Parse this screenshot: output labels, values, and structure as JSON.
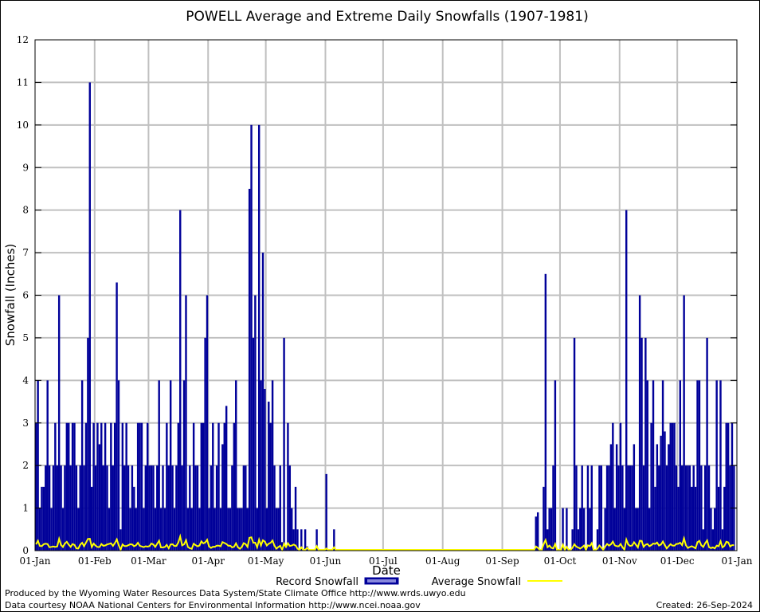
{
  "chart_data": {
    "type": "bar",
    "title": "POWELL Average and Extreme Daily Snowfalls (1907-1981)",
    "xlabel": "Date",
    "ylabel": "Snowfall (Inches)",
    "ylim": [
      0,
      12
    ],
    "yticks": [
      "0",
      "1",
      "2",
      "3",
      "4",
      "5",
      "6",
      "7",
      "8",
      "9",
      "10",
      "11",
      "12"
    ],
    "xlim_days": [
      0,
      365
    ],
    "xticks": [
      {
        "label": "01-Jan",
        "day": 0
      },
      {
        "label": "01-Feb",
        "day": 31
      },
      {
        "label": "01-Mar",
        "day": 59
      },
      {
        "label": "01-Apr",
        "day": 90
      },
      {
        "label": "01-May",
        "day": 120
      },
      {
        "label": "01-Jun",
        "day": 151
      },
      {
        "label": "01-Jul",
        "day": 181
      },
      {
        "label": "01-Aug",
        "day": 212
      },
      {
        "label": "01-Sep",
        "day": 243
      },
      {
        "label": "01-Oct",
        "day": 273
      },
      {
        "label": "01-Nov",
        "day": 304
      },
      {
        "label": "01-Dec",
        "day": 334
      },
      {
        "label": "01-Jan",
        "day": 365
      }
    ],
    "grid": true,
    "legend_position": "bottom-center",
    "series": [
      {
        "name": "Record Snowfall",
        "color": "#000099",
        "kind": "bar",
        "values": [
          3,
          4,
          1,
          1.5,
          1.5,
          2,
          4,
          2,
          1,
          2,
          3,
          2,
          6,
          2,
          1,
          2,
          3,
          3,
          2,
          3,
          3,
          2,
          1,
          2,
          4,
          2,
          3,
          5,
          11,
          1.5,
          3,
          2,
          3,
          2.5,
          3,
          2,
          3,
          2,
          1,
          3,
          2,
          3,
          6.3,
          4,
          0.5,
          3,
          2,
          3,
          2,
          1,
          2,
          1.5,
          1,
          3,
          3,
          3,
          1,
          2,
          3,
          2,
          2,
          2,
          1,
          2,
          4,
          1,
          2,
          1,
          3,
          2,
          4,
          2,
          1,
          2,
          3,
          8,
          2,
          4,
          6,
          1,
          2,
          1,
          3,
          2,
          2,
          1,
          3,
          3,
          5,
          6,
          1,
          2,
          3,
          1,
          2,
          3,
          1,
          2.5,
          3,
          3.4,
          1,
          1,
          2,
          3,
          4,
          1,
          1,
          1,
          2,
          2,
          1,
          8.5,
          10,
          5,
          6,
          1,
          10,
          4,
          7,
          3.8,
          1,
          3.5,
          3,
          4,
          2,
          1,
          1,
          2,
          0.2,
          5,
          0.1,
          3,
          2,
          1,
          0.5,
          1.5,
          0.5,
          0,
          0.5,
          0,
          0.5,
          0.1,
          0,
          0,
          0,
          0,
          0.5,
          0,
          0,
          0,
          0,
          1.8,
          0,
          0,
          0,
          0.5,
          0,
          0,
          0,
          0,
          0,
          0,
          0,
          0,
          0,
          0,
          0,
          0,
          0,
          0,
          0,
          0,
          0,
          0,
          0,
          0,
          0,
          0,
          0,
          0,
          0,
          0,
          0,
          0,
          0,
          0,
          0,
          0,
          0,
          0,
          0,
          0,
          0,
          0,
          0,
          0,
          0,
          0,
          0,
          0,
          0,
          0,
          0,
          0,
          0,
          0,
          0,
          0,
          0,
          0,
          0,
          0,
          0,
          0,
          0,
          0,
          0,
          0,
          0,
          0,
          0,
          0,
          0,
          0,
          0,
          0,
          0,
          0,
          0,
          0,
          0,
          0,
          0,
          0,
          0,
          0,
          0,
          0,
          0,
          0,
          0,
          0,
          0,
          0,
          0,
          0,
          0,
          0,
          0,
          0,
          0,
          0,
          0,
          0,
          0,
          0,
          0,
          0,
          0,
          0,
          0.8,
          0.9,
          0,
          0,
          1.5,
          6.5,
          0.5,
          1,
          1,
          2,
          4,
          0,
          0,
          0,
          1,
          0,
          1,
          0,
          0,
          0.5,
          5,
          2,
          0.5,
          1,
          2,
          1,
          0,
          2,
          1,
          2,
          0,
          0,
          0.5,
          2,
          2,
          0,
          1,
          2,
          2,
          2.5,
          3,
          1,
          2.5,
          2,
          3,
          2,
          1,
          8,
          2,
          2,
          2,
          2.5,
          1,
          1,
          6,
          5,
          2,
          5,
          4,
          1,
          3,
          4,
          1.5,
          2.5,
          2,
          2.7,
          4,
          2.8,
          2,
          2.5,
          3,
          3,
          3,
          2,
          1.5,
          4,
          2,
          6,
          2,
          2,
          2,
          1.5,
          2,
          1.5,
          4,
          4,
          2,
          0.5,
          2,
          5,
          2,
          1,
          0.5,
          1,
          4,
          1.5,
          4,
          0.5,
          1.5,
          3,
          3,
          2,
          3,
          2
        ],
        "note": "Values for each day of year (Jan 1 to Dec 31), estimated from bar heights"
      },
      {
        "name": "Average Snowfall",
        "color": "#ffff00",
        "kind": "line",
        "values_description": "Daily mean snowfall, mostly 0.0-0.25 in during Oct-May, ~0 Jun-Aug",
        "peak": 0.25
      }
    ],
    "legend": [
      {
        "label": "Record Snowfall",
        "symbol": "bar"
      },
      {
        "label": "Average Snowfall",
        "symbol": "line"
      }
    ]
  },
  "footer": {
    "produced_by": "Produced by the Wyoming Water Resources Data System/State Climate Office http://www.wrds.uwyo.edu",
    "data_courtesy": "Data courtesy NOAA National Centers for Environmental Information http://www.ncei.noaa.gov",
    "created": "Created:  26-Sep-2024"
  }
}
